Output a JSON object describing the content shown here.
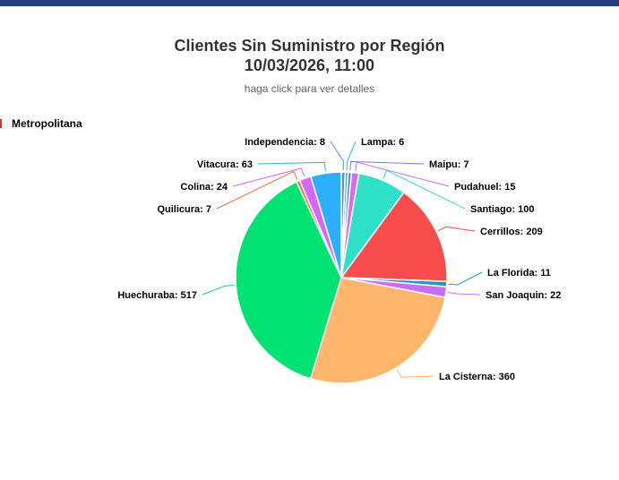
{
  "chart_data": {
    "type": "pie",
    "title": "Clientes Sin Suministro por Región",
    "subtitle_date": "10/03/2026, 11:00",
    "hint": "haga click para ver detalles",
    "legend": "Metropolitana",
    "slices": [
      {
        "name": "Independencia",
        "value": 8,
        "color": "#5b8fd6"
      },
      {
        "name": "Lampa",
        "value": 6,
        "color": "#2ec4a5"
      },
      {
        "name": "Maipu",
        "value": 7,
        "color": "#6f7fe0"
      },
      {
        "name": "Pudahuel",
        "value": 15,
        "color": "#d26ef0"
      },
      {
        "name": "Santiago",
        "value": 100,
        "color": "#2fe0c8"
      },
      {
        "name": "Cerrillos",
        "value": 209,
        "color": "#f94c4c"
      },
      {
        "name": "La Florida",
        "value": 11,
        "color": "#2a93d5"
      },
      {
        "name": "San Joaquin",
        "value": 22,
        "color": "#c96ef2"
      },
      {
        "name": "La Cisterna",
        "value": 360,
        "color": "#ffb56b"
      },
      {
        "name": "Huechuraba",
        "value": 517,
        "color": "#00e272"
      },
      {
        "name": "Quilicura",
        "value": 7,
        "color": "#fe6a35"
      },
      {
        "name": "Colina",
        "value": 24,
        "color": "#d568fb"
      },
      {
        "name": "Vitacura",
        "value": 63,
        "color": "#2caffe"
      }
    ]
  }
}
